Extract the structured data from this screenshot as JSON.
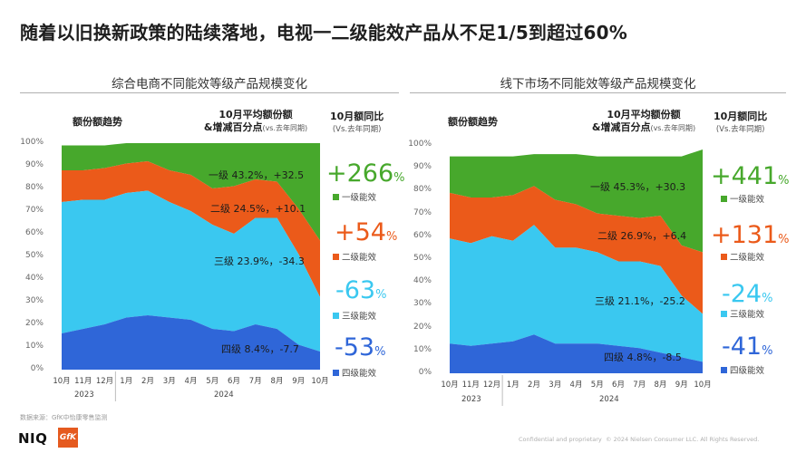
{
  "title": "随着以旧换新政策的陆续落地，电视一二级能效产品从不足1/5到超过60%",
  "source": "数据来源：GfK中怡康零售监测",
  "footer_confidential": "Confidential and proprietary",
  "footer_copyright": "© 2024 Nielsen Consumer LLC. All Rights Reserved.",
  "logos": {
    "niq": "NIQ",
    "gfk": "GfK"
  },
  "colors": {
    "level1": "#47a82c",
    "level2": "#eb5a1a",
    "level3": "#3ac8f0",
    "level4": "#2f66d8"
  },
  "headers": {
    "trend": "额份额趋势",
    "avg_line1": "10月平均额份额",
    "avg_line2": "&增减百分点",
    "avg_sub": "(vs.去年同期)",
    "yoy": "10月额同比",
    "yoy_sub": "(Vs.去年同期)"
  },
  "chart_data": [
    {
      "type": "area",
      "stacked": true,
      "title": "综合电商不同能效等级产品规模变化",
      "x": [
        "10月",
        "11月",
        "12月",
        "1月",
        "2月",
        "3月",
        "4月",
        "5月",
        "6月",
        "7月",
        "8月",
        "9月",
        "10月"
      ],
      "year_labels": [
        "2023",
        "2024"
      ],
      "ylim": [
        0,
        100
      ],
      "yticks": [
        "0%",
        "10%",
        "20%",
        "30%",
        "40%",
        "50%",
        "60%",
        "70%",
        "80%",
        "90%",
        "100%"
      ],
      "series": [
        {
          "name": "四级能效",
          "values": [
            16,
            18,
            20,
            23,
            24,
            23,
            22,
            18,
            17,
            20,
            18,
            11,
            8
          ]
        },
        {
          "name": "三级能效",
          "values": [
            58,
            57,
            55,
            55,
            55,
            51,
            48,
            46,
            43,
            47,
            49,
            40,
            24
          ]
        },
        {
          "name": "二级能效",
          "values": [
            14,
            13,
            14,
            13,
            13,
            14,
            16,
            16,
            21,
            17,
            16,
            20,
            25
          ]
        },
        {
          "name": "一级能效",
          "values": [
            11,
            11,
            10,
            9,
            8,
            12,
            14,
            20,
            19,
            16,
            17,
            29,
            43
          ]
        }
      ],
      "labels": [
        {
          "text": "一级 43.2%，+32.5",
          "change": "+266",
          "unit": "%",
          "legend": "一级能效"
        },
        {
          "text": "二级 24.5%，+10.1",
          "change": "+54",
          "unit": "%",
          "legend": "二级能效"
        },
        {
          "text": "三级 23.9%，-34.3",
          "change": "-63",
          "unit": "%",
          "legend": "三级能效"
        },
        {
          "text": "四级 8.4%，-7.7",
          "change": "-53",
          "unit": "%",
          "legend": "四级能效"
        }
      ]
    },
    {
      "type": "area",
      "stacked": true,
      "title": "线下市场不同能效等级产品规模变化",
      "x": [
        "10月",
        "11月",
        "12月",
        "1月",
        "2月",
        "3月",
        "4月",
        "5月",
        "6月",
        "7月",
        "8月",
        "9月",
        "10月"
      ],
      "year_labels": [
        "2023",
        "2024"
      ],
      "ylim": [
        0,
        100
      ],
      "yticks": [
        "0%",
        "10%",
        "20%",
        "30%",
        "40%",
        "50%",
        "60%",
        "70%",
        "80%",
        "90%",
        "100%"
      ],
      "series": [
        {
          "name": "四级能效",
          "values": [
            13,
            12,
            13,
            14,
            17,
            13,
            13,
            13,
            12,
            11,
            9,
            7,
            5
          ]
        },
        {
          "name": "三级能效",
          "values": [
            46,
            45,
            47,
            44,
            48,
            42,
            42,
            40,
            37,
            38,
            38,
            27,
            21
          ]
        },
        {
          "name": "二级能效",
          "values": [
            20,
            20,
            17,
            20,
            17,
            21,
            19,
            17,
            20,
            19,
            22,
            22,
            27
          ]
        },
        {
          "name": "一级能效",
          "values": [
            16,
            18,
            18,
            17,
            14,
            20,
            22,
            25,
            26,
            27,
            26,
            39,
            45
          ]
        }
      ],
      "labels": [
        {
          "text": "一级  45.3%，+30.3",
          "change": "+441",
          "unit": "%",
          "legend": "一级能效"
        },
        {
          "text": "二级 26.9%，+6.4",
          "change": "+131",
          "unit": "%",
          "legend": "二级能效"
        },
        {
          "text": "三级 21.1%，-25.2",
          "change": "-24",
          "unit": "%",
          "legend": "三级能效"
        },
        {
          "text": "四级 4.8%，-8.5",
          "change": "-41",
          "unit": "%",
          "legend": "四级能效"
        }
      ]
    }
  ]
}
